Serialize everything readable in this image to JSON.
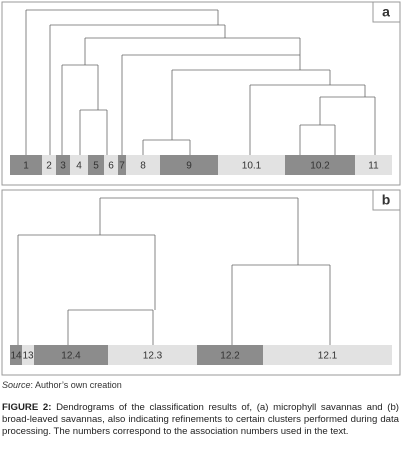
{
  "panels": [
    {
      "label": "a",
      "leaves": [
        "1",
        "2",
        "3",
        "4",
        "5",
        "6",
        "7",
        "8",
        "9",
        "10.1",
        "10.2",
        "11"
      ]
    },
    {
      "label": "b",
      "leaves": [
        "14",
        "13",
        "12.4",
        "12.3",
        "12.2",
        "12.1"
      ]
    }
  ],
  "source": {
    "prefix": "Source",
    "text": ": Author’s own creation"
  },
  "caption": {
    "label": "FIGURE 2:",
    "text": " Dendrograms of the classification results of, (a) microphyll savannas and (b) broad-leaved savannas, also indicating refinements to certain clusters performed during data processing. The numbers correspond to the association numbers used in the text."
  }
}
